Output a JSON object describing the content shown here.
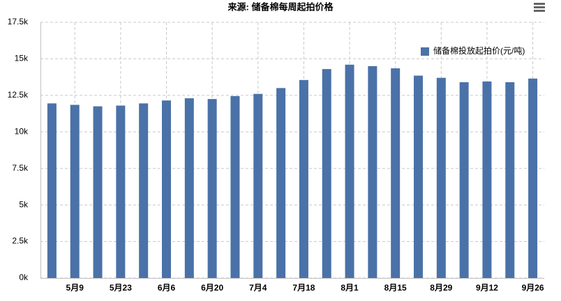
{
  "chart_data": {
    "type": "bar",
    "title": "来源: 储备棉每周起拍价格",
    "categories": [
      null,
      "5月9",
      null,
      "5月23",
      null,
      "6月6",
      null,
      "6月20",
      null,
      "7月4",
      null,
      "7月18",
      null,
      "8月1",
      null,
      "8月15",
      null,
      "8月29",
      null,
      "9月12",
      null,
      "9月26"
    ],
    "series": [
      {
        "name": "储备棉投放起拍价(元/吨)",
        "color": "#4a72a8",
        "values": [
          11950,
          11850,
          11750,
          11800,
          11950,
          12150,
          12300,
          12250,
          12450,
          12600,
          13000,
          13550,
          14300,
          14600,
          14500,
          14350,
          13850,
          13700,
          13400,
          13450,
          13400,
          13650
        ]
      }
    ],
    "ylim": [
      0,
      17500
    ],
    "yticks": [
      {
        "value": 0,
        "label": "0k"
      },
      {
        "value": 2500,
        "label": "2.5k"
      },
      {
        "value": 5000,
        "label": "5k"
      },
      {
        "value": 7500,
        "label": "7.5k"
      },
      {
        "value": 10000,
        "label": "10k"
      },
      {
        "value": 12500,
        "label": "12.5k"
      },
      {
        "value": 15000,
        "label": "15k"
      },
      {
        "value": 17500,
        "label": "17.5k"
      }
    ],
    "grid": true,
    "legend": "top-right"
  }
}
